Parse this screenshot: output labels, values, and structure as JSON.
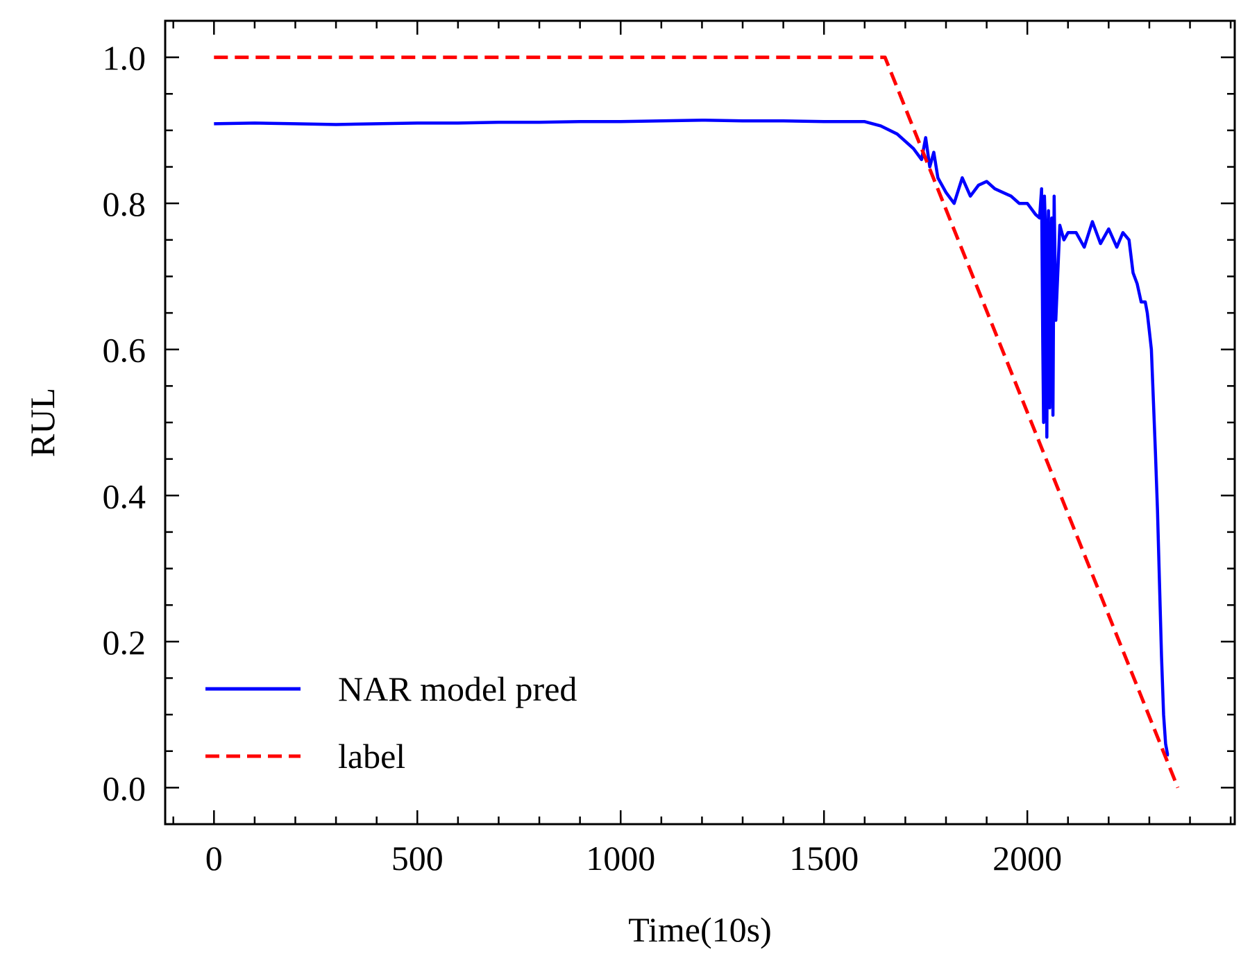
{
  "chart_data": {
    "type": "line",
    "title": "",
    "xlabel": "Time(10s)",
    "ylabel": "RUL",
    "xlim": [
      -120,
      2510
    ],
    "ylim": [
      -0.05,
      1.05
    ],
    "xticks": [
      0,
      500,
      1000,
      1500,
      2000
    ],
    "xtick_labels": [
      "0",
      "500",
      "1000",
      "1500",
      "2000"
    ],
    "xminor_step": 100,
    "yticks": [
      0.0,
      0.2,
      0.4,
      0.6,
      0.8,
      1.0
    ],
    "ytick_labels": [
      "0.0",
      "0.2",
      "0.4",
      "0.6",
      "0.8",
      "1.0"
    ],
    "yminor_step": 0.05,
    "grid": false,
    "legend_position": "lower-left",
    "series": [
      {
        "name": "NAR model pred",
        "color": "#0000ff",
        "style": "solid",
        "x": [
          0,
          100,
          200,
          300,
          400,
          500,
          600,
          700,
          800,
          900,
          1000,
          1100,
          1200,
          1300,
          1400,
          1500,
          1600,
          1640,
          1680,
          1700,
          1720,
          1740,
          1750,
          1760,
          1770,
          1780,
          1800,
          1820,
          1840,
          1860,
          1880,
          1900,
          1920,
          1940,
          1960,
          1980,
          2000,
          2020,
          2030,
          2035,
          2038,
          2040,
          2042,
          2045,
          2048,
          2050,
          2052,
          2055,
          2058,
          2060,
          2063,
          2066,
          2070,
          2080,
          2090,
          2100,
          2120,
          2140,
          2160,
          2180,
          2200,
          2220,
          2235,
          2250,
          2260,
          2270,
          2280,
          2290,
          2295,
          2300,
          2305,
          2310,
          2315,
          2320,
          2325,
          2330,
          2335,
          2340,
          2345,
          2348
        ],
        "values": [
          0.909,
          0.91,
          0.909,
          0.908,
          0.909,
          0.91,
          0.91,
          0.911,
          0.911,
          0.912,
          0.912,
          0.913,
          0.914,
          0.913,
          0.913,
          0.912,
          0.912,
          0.906,
          0.895,
          0.885,
          0.875,
          0.86,
          0.89,
          0.85,
          0.87,
          0.835,
          0.815,
          0.8,
          0.835,
          0.81,
          0.825,
          0.83,
          0.82,
          0.815,
          0.81,
          0.8,
          0.8,
          0.785,
          0.78,
          0.82,
          0.61,
          0.5,
          0.81,
          0.76,
          0.48,
          0.73,
          0.79,
          0.52,
          0.7,
          0.78,
          0.51,
          0.81,
          0.64,
          0.77,
          0.75,
          0.76,
          0.76,
          0.74,
          0.775,
          0.745,
          0.765,
          0.74,
          0.76,
          0.75,
          0.705,
          0.69,
          0.665,
          0.665,
          0.65,
          0.625,
          0.6,
          0.53,
          0.46,
          0.38,
          0.28,
          0.18,
          0.1,
          0.06,
          0.045,
          0.045
        ]
      },
      {
        "name": "label",
        "color": "#ff0000",
        "style": "dashed",
        "x": [
          0,
          1650,
          2370
        ],
        "values": [
          1.0,
          1.0,
          0.0
        ]
      }
    ]
  }
}
